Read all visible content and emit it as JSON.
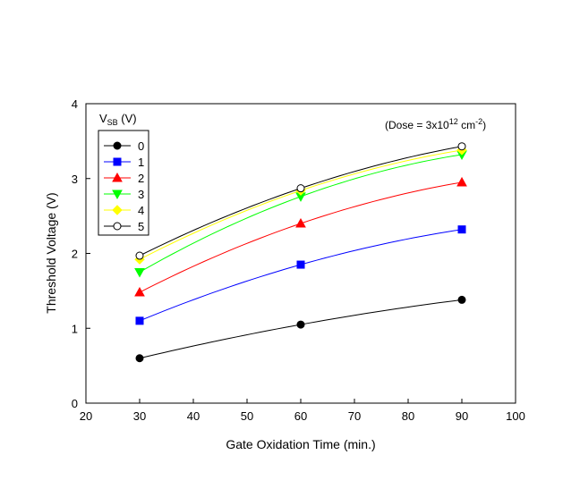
{
  "chart_data": {
    "type": "line",
    "title": "",
    "xlabel": "Gate Oxidation Time (min.)",
    "ylabel": "Threshold Voltage (V)",
    "xlim": [
      20,
      100
    ],
    "ylim": [
      0,
      4
    ],
    "xticks": [
      20,
      30,
      40,
      50,
      60,
      70,
      80,
      90,
      100
    ],
    "yticks": [
      0,
      1,
      2,
      3,
      4
    ],
    "grid": false,
    "legend": {
      "title_main": "V",
      "title_sub": "SB",
      "title_unit": " (V)",
      "placement": "upper-left"
    },
    "annotation": {
      "prefix": "(Dose = 3x10",
      "exp1": "12",
      "mid": " cm",
      "exp2": "-2",
      "suffix": ")"
    },
    "x": [
      30,
      60,
      90
    ],
    "series": [
      {
        "name": "0",
        "color": "#000000",
        "marker": "circle",
        "fill": "#000000",
        "values": [
          0.6,
          1.05,
          1.38
        ]
      },
      {
        "name": "1",
        "color": "#0000ff",
        "marker": "square",
        "fill": "#0000ff",
        "values": [
          1.1,
          1.85,
          2.32
        ]
      },
      {
        "name": "2",
        "color": "#ff0000",
        "marker": "triangle-up",
        "fill": "#ff0000",
        "values": [
          1.48,
          2.4,
          2.95
        ]
      },
      {
        "name": "3",
        "color": "#00ff00",
        "marker": "triangle-down",
        "fill": "#00ff00",
        "values": [
          1.75,
          2.76,
          3.32
        ]
      },
      {
        "name": "4",
        "color": "#ffff00",
        "marker": "diamond",
        "fill": "#ffff00",
        "values": [
          1.92,
          2.84,
          3.38
        ]
      },
      {
        "name": "5",
        "color": "#000000",
        "marker": "circle-open",
        "fill": "#ffffff",
        "values": [
          1.97,
          2.87,
          3.43
        ]
      }
    ]
  }
}
